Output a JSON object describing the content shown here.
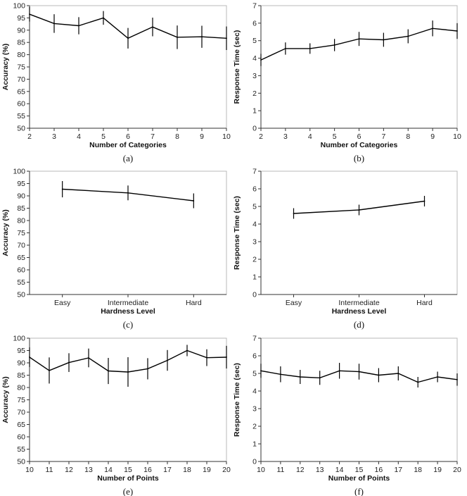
{
  "chart_data": [
    {
      "id": "a",
      "type": "line",
      "caption": "(a)",
      "xlabel": "Number of Categories",
      "ylabel": "Accuracy (%)",
      "x": [
        2,
        3,
        4,
        5,
        6,
        7,
        8,
        9,
        10
      ],
      "xticks": [
        "2",
        "3",
        "4",
        "5",
        "6",
        "7",
        "8",
        "9",
        "10"
      ],
      "values": [
        96.5,
        92.7,
        91.8,
        95.0,
        86.7,
        91.3,
        87.1,
        87.3,
        86.7
      ],
      "error": [
        3.0,
        3.8,
        3.5,
        2.8,
        4.2,
        3.8,
        4.8,
        4.5,
        4.8
      ],
      "ylim": [
        50,
        100
      ],
      "yticks": [
        50,
        55,
        60,
        65,
        70,
        75,
        80,
        85,
        90,
        95,
        100
      ]
    },
    {
      "id": "b",
      "type": "line",
      "caption": "(b)",
      "xlabel": "Number of Categories",
      "ylabel": "Response Time (sec)",
      "x": [
        2,
        3,
        4,
        5,
        6,
        7,
        8,
        9,
        10
      ],
      "xticks": [
        "2",
        "3",
        "4",
        "5",
        "6",
        "7",
        "8",
        "9",
        "10"
      ],
      "values": [
        3.9,
        4.55,
        4.55,
        4.75,
        5.1,
        5.05,
        5.25,
        5.7,
        5.55
      ],
      "error": [
        0.35,
        0.35,
        0.3,
        0.35,
        0.4,
        0.4,
        0.4,
        0.45,
        0.45
      ],
      "ylim": [
        0,
        7
      ],
      "yticks": [
        0,
        1,
        2,
        3,
        4,
        5,
        6,
        7
      ]
    },
    {
      "id": "c",
      "type": "line",
      "caption": "(c)",
      "xlabel": "Hardness Level",
      "ylabel": "Accuracy (%)",
      "x": [
        0,
        1,
        2
      ],
      "xticks": [
        "Easy",
        "Intermediate",
        "Hard"
      ],
      "values": [
        92.7,
        91.2,
        88.0
      ],
      "error": [
        3.3,
        3.0,
        3.0
      ],
      "ylim": [
        50,
        100
      ],
      "yticks": [
        50,
        55,
        60,
        65,
        70,
        75,
        80,
        85,
        90,
        95,
        100
      ]
    },
    {
      "id": "d",
      "type": "line",
      "caption": "(d)",
      "xlabel": "Hardness Level",
      "ylabel": "Response Time (sec)",
      "x": [
        0,
        1,
        2
      ],
      "xticks": [
        "Easy",
        "Intermediate",
        "Hard"
      ],
      "values": [
        4.6,
        4.8,
        5.3
      ],
      "error": [
        0.3,
        0.3,
        0.3
      ],
      "ylim": [
        0,
        7
      ],
      "yticks": [
        0,
        1,
        2,
        3,
        4,
        5,
        6,
        7
      ]
    },
    {
      "id": "e",
      "type": "line",
      "caption": "(e)",
      "xlabel": "Number of Points",
      "ylabel": "Accuracy (%)",
      "x": [
        10,
        11,
        12,
        13,
        14,
        15,
        16,
        17,
        18,
        19,
        20
      ],
      "xticks": [
        "10",
        "11",
        "12",
        "13",
        "14",
        "15",
        "16",
        "17",
        "18",
        "19",
        "20"
      ],
      "values": [
        92.3,
        86.9,
        90.1,
        92.0,
        86.7,
        86.3,
        87.6,
        91.0,
        95.0,
        92.1,
        92.3
      ],
      "error": [
        4.0,
        5.3,
        3.8,
        3.8,
        5.3,
        6.0,
        4.3,
        4.2,
        2.3,
        3.4,
        4.6
      ],
      "ylim": [
        50,
        100
      ],
      "yticks": [
        50,
        55,
        60,
        65,
        70,
        75,
        80,
        85,
        90,
        95,
        100
      ]
    },
    {
      "id": "f",
      "type": "line",
      "caption": "(f)",
      "xlabel": "Number of Points",
      "ylabel": "Response Time (sec)",
      "x": [
        10,
        11,
        12,
        13,
        14,
        15,
        16,
        17,
        18,
        19,
        20
      ],
      "xticks": [
        "10",
        "11",
        "12",
        "13",
        "14",
        "15",
        "16",
        "17",
        "18",
        "19",
        "20"
      ],
      "values": [
        5.15,
        4.95,
        4.8,
        4.75,
        5.15,
        5.1,
        4.9,
        5.0,
        4.5,
        4.8,
        4.65
      ],
      "error": [
        0.4,
        0.45,
        0.4,
        0.4,
        0.45,
        0.45,
        0.4,
        0.4,
        0.3,
        0.3,
        0.35
      ],
      "ylim": [
        0,
        7
      ],
      "yticks": [
        0,
        1,
        2,
        3,
        4,
        5,
        6,
        7
      ]
    }
  ]
}
